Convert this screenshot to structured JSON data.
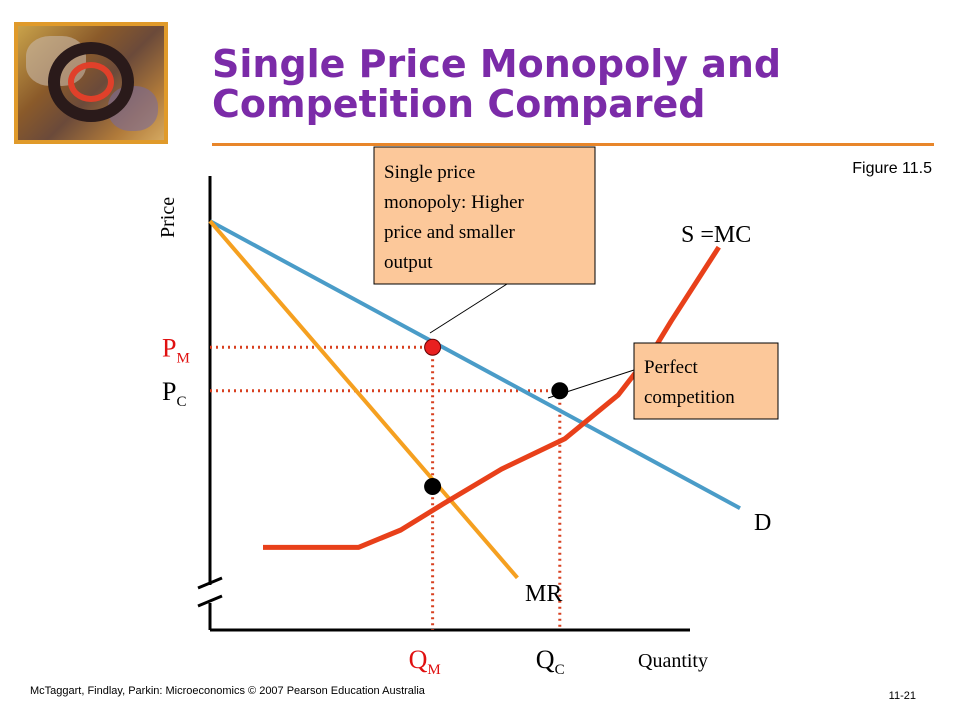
{
  "slide": {
    "title_line1": "Single Price Monopoly and",
    "title_line2": "Competition Compared",
    "figure_label": "Figure 11.5",
    "footer_left": "McTaggart, Findlay, Parkin: Microeconomics © 2007 Pearson Education Australia",
    "footer_right": "11-21"
  },
  "colors": {
    "demand": "#4a9cc8",
    "mr": "#f5a020",
    "supply": "#e8401a",
    "guides": "#d84020",
    "callout_fill": "#fcc89a",
    "title": "#7b2ba8",
    "rule": "#e8862a"
  },
  "chart_data": {
    "type": "line",
    "title": "",
    "xlabel": "Quantity",
    "ylabel": "Price",
    "axis_break": "y",
    "xlim": [
      0,
      10
    ],
    "ylim": [
      0,
      10
    ],
    "series": [
      {
        "name": "D",
        "points": [
          [
            0,
            9.4
          ],
          [
            10,
            2.8
          ]
        ]
      },
      {
        "name": "MR",
        "points": [
          [
            0,
            9.4
          ],
          [
            5.8,
            1.2
          ]
        ]
      },
      {
        "name": "S =MC",
        "points": [
          [
            1,
            1.9
          ],
          [
            2.8,
            1.9
          ],
          [
            3.6,
            2.3
          ],
          [
            4.4,
            2.9
          ],
          [
            5.5,
            3.7
          ],
          [
            6.7,
            4.4
          ],
          [
            7.7,
            5.4
          ],
          [
            8.4,
            6.5
          ],
          [
            8.7,
            7.1
          ],
          [
            9.6,
            8.8
          ]
        ]
      }
    ],
    "points": [
      {
        "name": "monopoly",
        "x": 4.2,
        "y": 6.5
      },
      {
        "name": "competition",
        "x": 6.6,
        "y": 5.5
      },
      {
        "name": "mc-at-qm",
        "x": 4.2,
        "y": 3.3
      }
    ],
    "y_ticks": [
      {
        "label": "P",
        "sub": "M",
        "value": 6.5
      },
      {
        "label": "P",
        "sub": "C",
        "value": 5.5
      }
    ],
    "x_ticks": [
      {
        "label": "Q",
        "sub": "M",
        "value": 4.2
      },
      {
        "label": "Q",
        "sub": "C",
        "value": 6.6
      }
    ],
    "curve_labels": {
      "D": "D",
      "MR": "MR",
      "S": "S =MC"
    },
    "annotations": [
      {
        "name": "monopoly-callout",
        "lines": [
          "Single price",
          "monopoly: Higher",
          "price and smaller",
          "output"
        ]
      },
      {
        "name": "competition-callout",
        "lines": [
          "Perfect",
          "competition"
        ]
      }
    ]
  }
}
